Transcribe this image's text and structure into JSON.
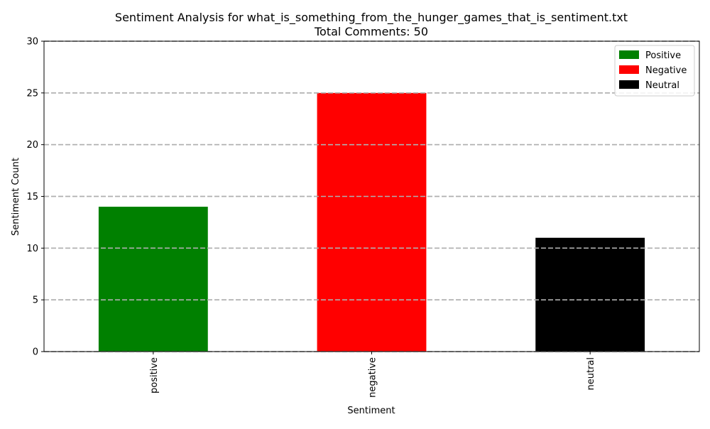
{
  "chart_data": {
    "type": "bar",
    "title": "Sentiment Analysis for what_is_something_from_the_hunger_games_that_is_sentiment.txt",
    "subtitle": "Total Comments: 50",
    "xlabel": "Sentiment",
    "ylabel": "Sentiment Count",
    "categories": [
      "positive",
      "negative",
      "neutral"
    ],
    "values": [
      14,
      25,
      11
    ],
    "colors": [
      "#008000",
      "#ff0000",
      "#000000"
    ],
    "ylim": [
      0,
      30
    ],
    "yticks": [
      0,
      5,
      10,
      15,
      20,
      25,
      30
    ],
    "grid": {
      "axis": "y",
      "style": "dashed",
      "color": "#b0b0b0"
    },
    "legend": {
      "placement": "top-right",
      "entries": [
        {
          "label": "Positive",
          "color": "#008000"
        },
        {
          "label": "Negative",
          "color": "#ff0000"
        },
        {
          "label": "Neutral",
          "color": "#000000"
        }
      ]
    }
  }
}
